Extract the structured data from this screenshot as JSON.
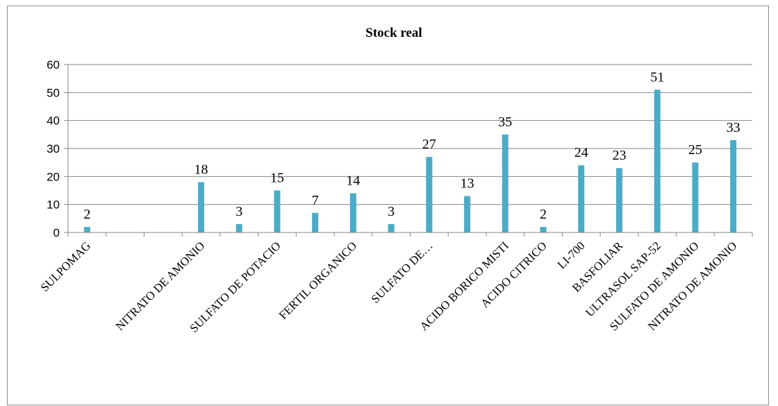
{
  "chart_data": {
    "type": "bar",
    "title": "Stock real",
    "xlabel": "",
    "ylabel": "",
    "ylim": [
      0,
      60
    ],
    "yticks": [
      0,
      10,
      20,
      30,
      40,
      50,
      60
    ],
    "grid": true,
    "legend": "none",
    "bar_color": "#4bacc6",
    "categories": [
      "SULPOMAG",
      "",
      "",
      "NITRATO DE AMONIO",
      "",
      "SULFATO DE POTACIO",
      "",
      "FERTIL ORGANICO",
      "",
      "SULFATO DE…",
      "",
      "ACIDO BORICO MISTI",
      "ACIDO CITRICO",
      "LI-700",
      "BASFOLIAR",
      "ULTRASOL SAP-52",
      "SULFATO DE AMONIO",
      "NITRATO DE AMONIO"
    ],
    "values": [
      2,
      null,
      null,
      18,
      3,
      15,
      7,
      14,
      3,
      27,
      13,
      35,
      2,
      24,
      23,
      51,
      25,
      33
    ]
  }
}
